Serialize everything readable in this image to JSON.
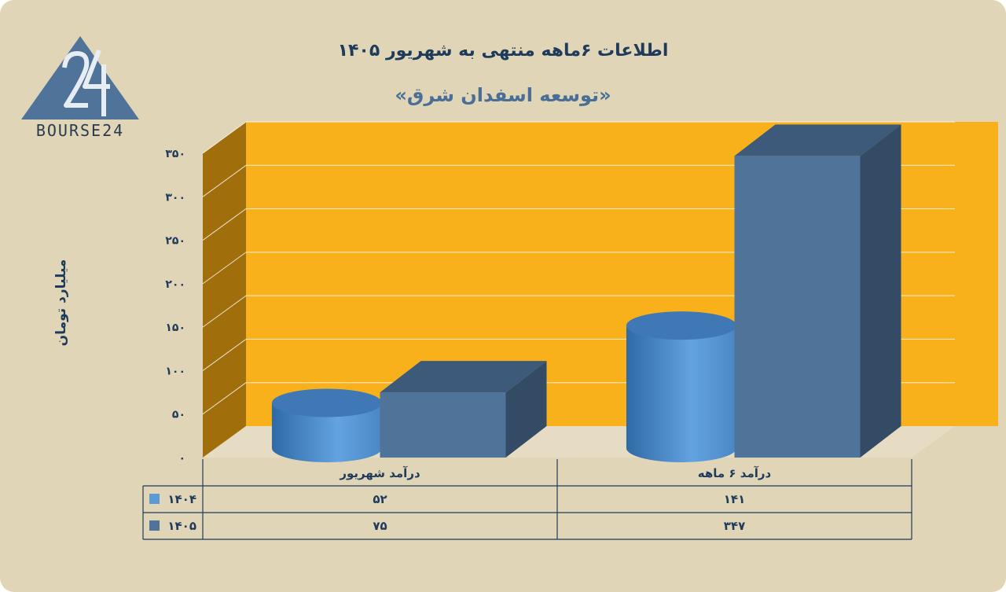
{
  "title": "اطلاعات ۶ماهه منتهی به شهریور ۱۴۰۵",
  "subtitle": "«توسعه اسفدان شرق»",
  "brand": "BOURSE24",
  "colors": {
    "background": "#e1d5b7",
    "wall": "#f8b11a",
    "side_wall": "#a06e0a",
    "series_1404": "#5b9bd5",
    "series_1405": "#4f7399"
  },
  "chart_data": {
    "type": "bar",
    "ylabel": "میلیارد تومان",
    "ylim": [
      0,
      350
    ],
    "y_ticks": [
      0,
      50,
      100,
      150,
      200,
      250,
      300,
      350
    ],
    "y_tick_labels": [
      "۰",
      "۵۰",
      "۱۰۰",
      "۱۵۰",
      "۲۰۰",
      "۲۵۰",
      "۳۰۰",
      "۳۵۰"
    ],
    "categories": [
      "درآمد  شهریور",
      "درآمد ۶ ماهه"
    ],
    "series": [
      {
        "name": "۱۴۰۴",
        "values": [
          52,
          141
        ],
        "value_labels": [
          "۵۲",
          "۱۴۱"
        ],
        "shape": "cylinder",
        "color": "#5b9bd5"
      },
      {
        "name": "۱۴۰۵",
        "values": [
          75,
          347
        ],
        "value_labels": [
          "۷۵",
          "۳۴۷"
        ],
        "shape": "box",
        "color": "#4f7399"
      }
    ],
    "grid": true,
    "legend": "data-table"
  }
}
